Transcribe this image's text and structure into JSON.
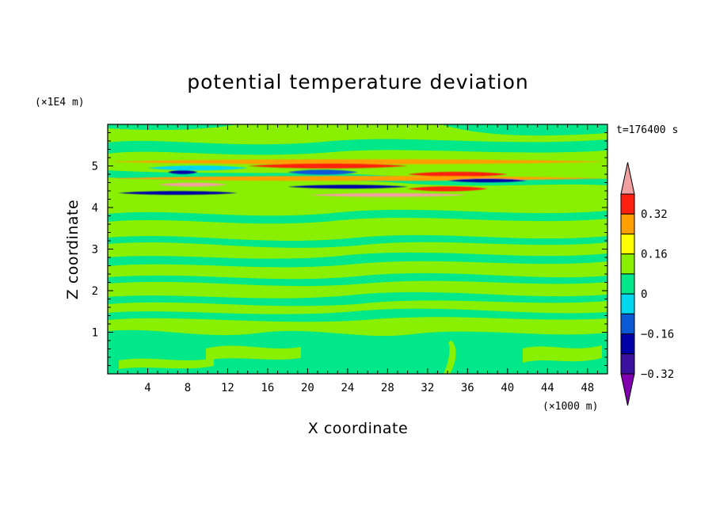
{
  "chart_data": {
    "type": "heatmap",
    "title": "potential temperature deviation",
    "xlabel": "X coordinate",
    "ylabel": "Z coordinate",
    "x_unit": "(×1000 m)",
    "y_unit": "(×1E4 m)",
    "time_label": "t=176400 s",
    "xlim": [
      0,
      50
    ],
    "ylim": [
      0,
      6
    ],
    "x_ticks": [
      4,
      8,
      12,
      16,
      20,
      24,
      28,
      32,
      36,
      40,
      44,
      48
    ],
    "y_ticks": [
      1,
      2,
      3,
      4,
      5
    ],
    "colorbar": {
      "levels": [
        -0.4,
        -0.32,
        -0.24,
        -0.16,
        -0.08,
        0,
        0.08,
        0.16,
        0.24,
        0.32,
        0.4
      ],
      "tick_labels": [
        "0.32",
        "0.16",
        "0",
        "−0.16",
        "−0.32"
      ],
      "tick_values": [
        0.32,
        0.16,
        0,
        -0.16,
        -0.32
      ],
      "colors": [
        "#8000b0",
        "#3a10a0",
        "#0000a8",
        "#0a5ad8",
        "#00d8f0",
        "#00e88a",
        "#88f000",
        "#ffff00",
        "#ffa000",
        "#ff2010",
        "#f0a0a0"
      ]
    },
    "background_color": "#88f000",
    "bands": [
      {
        "z": 5.1,
        "x": [
          0,
          50
        ],
        "value": 0.16
      },
      {
        "z": 5.0,
        "x": [
          14,
          30
        ],
        "value": 0.24
      },
      {
        "z": 4.95,
        "x": [
          4,
          14
        ],
        "value": -0.16
      },
      {
        "z": 4.85,
        "x": [
          6,
          9
        ],
        "value": -0.32
      },
      {
        "z": 4.85,
        "x": [
          18,
          25
        ],
        "value": -0.24
      },
      {
        "z": 4.8,
        "x": [
          30,
          40
        ],
        "value": 0.24
      },
      {
        "z": 4.7,
        "x": [
          0,
          50
        ],
        "value": 0.16
      },
      {
        "z": 4.65,
        "x": [
          34,
          42
        ],
        "value": -0.32
      },
      {
        "z": 4.55,
        "x": [
          5,
          12
        ],
        "value": 0.32
      },
      {
        "z": 4.5,
        "x": [
          18,
          30
        ],
        "value": -0.32
      },
      {
        "z": 4.45,
        "x": [
          30,
          38
        ],
        "value": 0.24
      },
      {
        "z": 4.35,
        "x": [
          1,
          13
        ],
        "value": -0.32
      },
      {
        "z": 4.3,
        "x": [
          20,
          36
        ],
        "value": 0.32
      }
    ]
  }
}
